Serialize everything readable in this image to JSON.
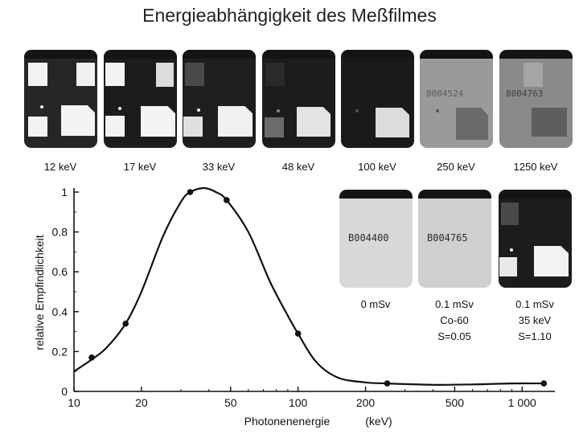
{
  "title": "Energieabhängigkeit des Meßfilmes",
  "films": [
    {
      "label": "12 keV"
    },
    {
      "label": "17 keV"
    },
    {
      "label": "33 keV"
    },
    {
      "label": "48 keV"
    },
    {
      "label": "100 keV"
    },
    {
      "label": "250 keV"
    },
    {
      "label": "1250 keV"
    }
  ],
  "inset_films": [
    {
      "serial": "B004400",
      "lines": [
        "0 mSv"
      ]
    },
    {
      "serial": "B004765",
      "lines": [
        "0.1 mSv",
        "Co-60",
        "S=0.05"
      ]
    },
    {
      "serial": "",
      "lines": [
        "0.1 mSv",
        "35 keV",
        "S=1.10"
      ]
    }
  ],
  "chart_data": {
    "type": "line",
    "title": "",
    "xlabel": "Photonenenergie",
    "xunit": "(keV)",
    "ylabel": "relative Empfindlichkeit",
    "xscale": "log",
    "xlim": [
      10,
      1400
    ],
    "ylim": [
      0,
      1.05
    ],
    "x_ticks": [
      10,
      20,
      50,
      100,
      200,
      500,
      1000
    ],
    "x_tick_labels": [
      "10",
      "20",
      "50",
      "100",
      "200",
      "500",
      "1 000"
    ],
    "y_ticks": [
      0,
      0.2,
      0.4,
      0.6,
      0.8,
      1
    ],
    "y_tick_labels": [
      "0",
      "0.2",
      "0.4",
      "0.6",
      "0.8",
      "1"
    ],
    "grid": false,
    "series": [
      {
        "points": [
          [
            12,
            0.17
          ],
          [
            17,
            0.34
          ],
          [
            33,
            1.0
          ],
          [
            48,
            0.96
          ],
          [
            100,
            0.29
          ],
          [
            250,
            0.04
          ],
          [
            1250,
            0.04
          ]
        ],
        "curve": [
          [
            10,
            0.1
          ],
          [
            12,
            0.16
          ],
          [
            14,
            0.22
          ],
          [
            17,
            0.34
          ],
          [
            20,
            0.5
          ],
          [
            25,
            0.78
          ],
          [
            30,
            0.95
          ],
          [
            33,
            1.0
          ],
          [
            38,
            1.02
          ],
          [
            43,
            1.0
          ],
          [
            48,
            0.96
          ],
          [
            60,
            0.8
          ],
          [
            75,
            0.55
          ],
          [
            90,
            0.38
          ],
          [
            100,
            0.29
          ],
          [
            120,
            0.15
          ],
          [
            150,
            0.07
          ],
          [
            200,
            0.045
          ],
          [
            250,
            0.04
          ],
          [
            400,
            0.033
          ],
          [
            600,
            0.035
          ],
          [
            900,
            0.04
          ],
          [
            1250,
            0.04
          ]
        ]
      }
    ],
    "colors": {
      "line": "#111111",
      "marker": "#111111"
    }
  }
}
